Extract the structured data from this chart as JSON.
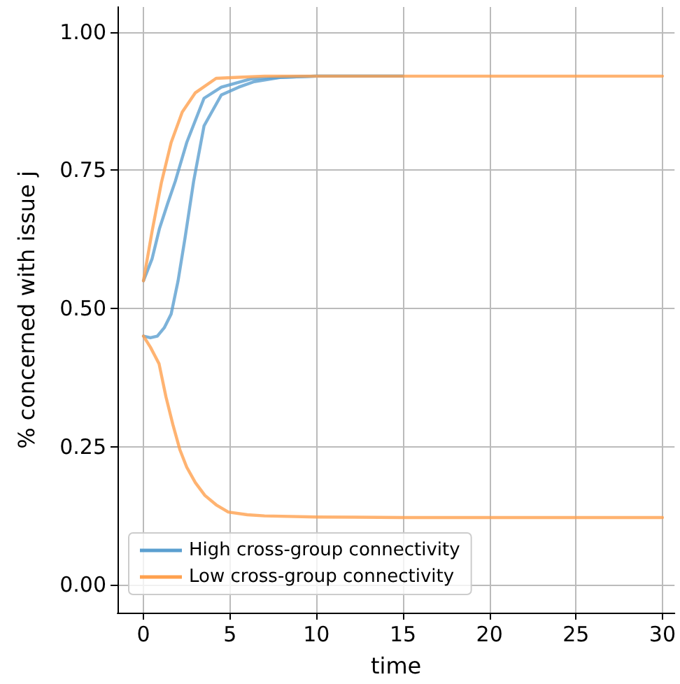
{
  "chart_data": {
    "type": "line",
    "xlabel": "time",
    "ylabel": "% concerned with issue j",
    "xlim": [
      -1.5,
      30.7
    ],
    "ylim": [
      -0.05,
      1.045
    ],
    "xticks": [
      0,
      5,
      10,
      15,
      20,
      25,
      30
    ],
    "yticks": [
      {
        "value": 0,
        "label": "0.00"
      },
      {
        "value": 0.25,
        "label": "0.25"
      },
      {
        "value": 0.5,
        "label": "0.50"
      },
      {
        "value": 0.75,
        "label": "0.75"
      },
      {
        "value": 1,
        "label": "1.00"
      }
    ],
    "grid": true,
    "legend": "bottom left",
    "marker": "none",
    "line_style": "solid",
    "series": [
      {
        "name": "High cross-group connectivity",
        "color": "#5b9fd0",
        "x": [
          0,
          0.5,
          0.93,
          1.4,
          1.84,
          2.5,
          3.5,
          4.5,
          6.2,
          8,
          10,
          15
        ],
        "values": [
          0.55,
          0.59,
          0.645,
          0.69,
          0.73,
          0.8,
          0.88,
          0.9,
          0.915,
          0.918,
          0.92,
          0.92
        ]
      },
      {
        "color": "#5b9fd0",
        "x": [
          0,
          0.4,
          0.8,
          1.2,
          1.6,
          2,
          2.4,
          2.9,
          3.5,
          4.5,
          5.5,
          6.4,
          8,
          10,
          15
        ],
        "values": [
          0.45,
          0.447,
          0.45,
          0.465,
          0.49,
          0.55,
          0.627,
          0.73,
          0.83,
          0.886,
          0.9,
          0.91,
          0.918,
          0.92,
          0.92
        ]
      },
      {
        "name": "Low cross-group connectivity",
        "color": "#ffa04d",
        "x": [
          0,
          0.5,
          1.04,
          1.6,
          2.24,
          3,
          4.2,
          5.5,
          7,
          10,
          15,
          20,
          25,
          30
        ],
        "values": [
          0.55,
          0.64,
          0.728,
          0.8,
          0.855,
          0.89,
          0.916,
          0.918,
          0.92,
          0.92,
          0.92,
          0.92,
          0.92,
          0.92
        ]
      },
      {
        "color": "#ffa04d",
        "x": [
          0,
          0.4,
          0.9,
          1.3,
          1.7,
          2.1,
          2.5,
          3,
          3.55,
          4.2,
          4.9,
          6,
          7,
          10,
          15,
          20,
          25,
          30
        ],
        "values": [
          0.45,
          0.43,
          0.4,
          0.34,
          0.29,
          0.245,
          0.213,
          0.185,
          0.162,
          0.145,
          0.132,
          0.127,
          0.125,
          0.123,
          0.122,
          0.122,
          0.122,
          0.122
        ]
      }
    ]
  }
}
